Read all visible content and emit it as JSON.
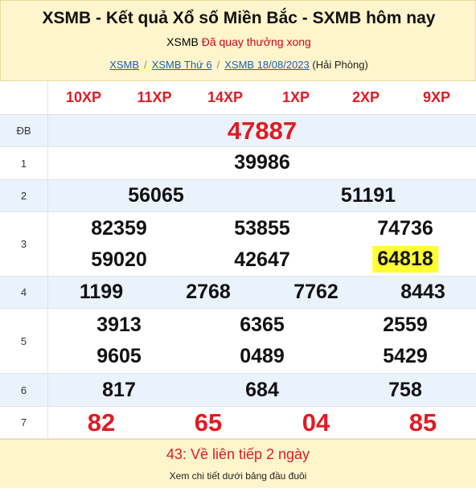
{
  "header": {
    "title": "XSMB - Kết quả Xổ số Miền Bắc - SXMB hôm nay",
    "subtitle_prefix": "XSMB",
    "subtitle_status": "Đã quay thưởng xong",
    "breadcrumb": {
      "items": [
        "XSMB",
        "XSMB Thứ 6",
        "XSMB 18/08/2023"
      ],
      "separator": "/",
      "suffix": "(Hải Phòng)"
    }
  },
  "codes": [
    "10XP",
    "11XP",
    "14XP",
    "1XP",
    "2XP",
    "9XP"
  ],
  "prizes": [
    {
      "label": "ĐB",
      "numbers": [
        "47887"
      ]
    },
    {
      "label": "1",
      "numbers": [
        "39986"
      ]
    },
    {
      "label": "2",
      "numbers": [
        "56065",
        "51191"
      ]
    },
    {
      "label": "3",
      "numbers": [
        "82359",
        "53855",
        "74736",
        "59020",
        "42647",
        "64818"
      ]
    },
    {
      "label": "4",
      "numbers": [
        "1199",
        "2768",
        "7762",
        "8443"
      ]
    },
    {
      "label": "5",
      "numbers": [
        "3913",
        "6365",
        "2559",
        "9605",
        "0489",
        "5429"
      ]
    },
    {
      "label": "6",
      "numbers": [
        "817",
        "684",
        "758"
      ]
    },
    {
      "label": "7",
      "numbers": [
        "82",
        "65",
        "04",
        "85"
      ]
    }
  ],
  "highlighted_number": "64818",
  "footer": {
    "streak": "43: Về liên tiếp 2 ngày",
    "note": "Xem chi tiết dưới bảng đầu đuôi"
  },
  "colors": {
    "header_bg": "#fff5cc",
    "row_alt_bg": "#eaf2fb",
    "accent_red": "#e01b24",
    "highlight_yellow": "#ffff33",
    "link_blue": "#1a5fb4"
  }
}
